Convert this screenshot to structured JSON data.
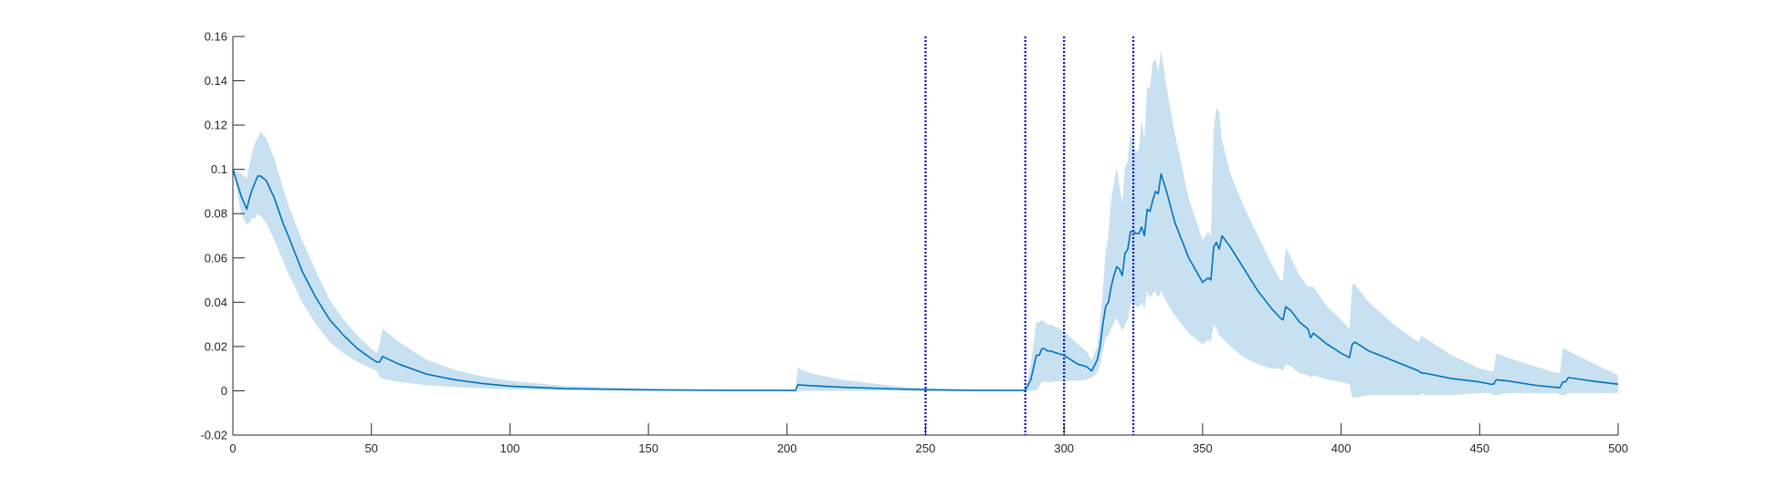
{
  "chart_data": {
    "type": "area",
    "title": "",
    "xlabel": "",
    "ylabel": "",
    "xlim": [
      0,
      500
    ],
    "ylim": [
      -0.02,
      0.16
    ],
    "x_ticks": [
      {
        "value": 0,
        "label": "0"
      },
      {
        "value": 50,
        "label": "50"
      },
      {
        "value": 100,
        "label": "100"
      },
      {
        "value": 150,
        "label": "150"
      },
      {
        "value": 200,
        "label": "200"
      },
      {
        "value": 250,
        "label": "250"
      },
      {
        "value": 300,
        "label": "300"
      },
      {
        "value": 350,
        "label": "350"
      },
      {
        "value": 400,
        "label": "400"
      },
      {
        "value": 450,
        "label": "450"
      },
      {
        "value": 500,
        "label": "500"
      }
    ],
    "y_ticks": [
      {
        "value": -0.02,
        "label": "-0.02"
      },
      {
        "value": 0,
        "label": "0"
      },
      {
        "value": 0.02,
        "label": "0.02"
      },
      {
        "value": 0.04,
        "label": "0.04"
      },
      {
        "value": 0.06,
        "label": "0.06"
      },
      {
        "value": 0.08,
        "label": "0.08"
      },
      {
        "value": 0.1,
        "label": "0.1"
      },
      {
        "value": 0.12,
        "label": "0.12"
      },
      {
        "value": 0.14,
        "label": "0.14"
      },
      {
        "value": 0.16,
        "label": "0.16"
      }
    ],
    "grid": false,
    "legend": "none",
    "colors": {
      "line": "#0072bd",
      "band": "#c8e1f1",
      "vlines": "#0000cc",
      "axis": "#262626"
    },
    "vertical_lines": [
      250,
      286,
      300,
      325
    ],
    "series": [
      {
        "x": [
          0,
          3,
          5,
          6,
          7,
          8,
          9,
          10,
          12,
          15,
          18,
          20,
          25,
          30,
          35,
          40,
          45,
          50,
          52,
          53,
          54,
          60,
          70,
          80,
          90,
          100,
          120,
          150,
          180,
          200,
          203,
          204,
          205,
          210,
          220,
          240,
          250,
          260,
          270,
          280,
          285,
          286,
          288,
          290,
          291,
          292,
          293,
          294,
          295,
          300,
          305,
          308,
          310,
          312,
          313,
          314,
          315,
          316,
          317,
          318,
          319,
          320,
          321,
          322,
          323,
          324,
          325,
          326,
          327,
          328,
          329,
          330,
          331,
          332,
          333,
          334,
          335,
          337,
          340,
          345,
          350,
          352,
          353,
          354,
          355,
          356,
          357,
          360,
          365,
          370,
          375,
          378,
          379,
          380,
          382,
          385,
          388,
          389,
          390,
          395,
          400,
          403,
          404,
          405,
          410,
          420,
          428,
          429,
          430,
          440,
          450,
          454,
          455,
          456,
          460,
          470,
          478,
          479,
          480,
          481,
          482,
          490,
          500
        ],
        "y": [
          0.1,
          0.088,
          0.082,
          0.087,
          0.091,
          0.094,
          0.097,
          0.097,
          0.095,
          0.087,
          0.076,
          0.07,
          0.054,
          0.042,
          0.032,
          0.025,
          0.019,
          0.0145,
          0.013,
          0.013,
          0.0155,
          0.012,
          0.0075,
          0.005,
          0.0033,
          0.0021,
          0.001,
          0.0004,
          0.0002,
          0.0002,
          0.0001,
          0.0028,
          0.0026,
          0.0022,
          0.0016,
          0.0008,
          0.0005,
          0.0003,
          0.0002,
          0.0002,
          0.0002,
          0.0002,
          0.005,
          0.016,
          0.016,
          0.019,
          0.019,
          0.018,
          0.018,
          0.016,
          0.012,
          0.011,
          0.009,
          0.014,
          0.02,
          0.03,
          0.038,
          0.04,
          0.047,
          0.052,
          0.056,
          0.055,
          0.052,
          0.062,
          0.064,
          0.072,
          0.072,
          0.071,
          0.071,
          0.074,
          0.07,
          0.082,
          0.081,
          0.086,
          0.09,
          0.089,
          0.098,
          0.09,
          0.076,
          0.06,
          0.049,
          0.051,
          0.05,
          0.065,
          0.067,
          0.064,
          0.07,
          0.065,
          0.055,
          0.045,
          0.037,
          0.033,
          0.032,
          0.038,
          0.036,
          0.031,
          0.028,
          0.024,
          0.026,
          0.021,
          0.017,
          0.015,
          0.021,
          0.022,
          0.018,
          0.013,
          0.009,
          0.008,
          0.008,
          0.0055,
          0.004,
          0.003,
          0.003,
          0.005,
          0.0045,
          0.0025,
          0.0015,
          0.0015,
          0.004,
          0.004,
          0.006,
          0.0045,
          0.003
        ],
        "lower": [
          0.1,
          0.08,
          0.075,
          0.076,
          0.078,
          0.078,
          0.08,
          0.079,
          0.076,
          0.068,
          0.059,
          0.053,
          0.04,
          0.03,
          0.022,
          0.017,
          0.013,
          0.01,
          0.009,
          0.006,
          0.0055,
          0.004,
          0.0025,
          0.0017,
          0.0011,
          0.0007,
          0.0003,
          0.0001,
          0.0001,
          0.0001,
          0,
          0,
          0,
          0,
          0,
          0,
          0,
          0,
          0,
          0,
          0,
          0,
          0,
          0.0002,
          0.002,
          0.004,
          0.004,
          0.004,
          0.004,
          0.0045,
          0.0045,
          0.005,
          0.006,
          0.008,
          0.012,
          0.018,
          0.024,
          0.025,
          0.028,
          0.031,
          0.033,
          0.03,
          0.027,
          0.03,
          0.032,
          0.039,
          0.04,
          0.038,
          0.038,
          0.04,
          0.037,
          0.045,
          0.042,
          0.044,
          0.045,
          0.042,
          0.045,
          0.04,
          0.034,
          0.026,
          0.021,
          0.023,
          0.022,
          0.03,
          0.028,
          0.025,
          0.024,
          0.02,
          0.015,
          0.012,
          0.01,
          0.01,
          0.009,
          0.012,
          0.011,
          0.008,
          0.007,
          0.006,
          0.007,
          0.005,
          0.004,
          0.003,
          -0.003,
          -0.003,
          -0.002,
          -0.002,
          -0.002,
          -0.001,
          -0.002,
          -0.002,
          -0.001,
          -0.001,
          -0.002,
          -0.002,
          -0.001,
          -0.001,
          -0.001,
          -0.002,
          -0.002,
          -0.002,
          -0.001,
          -0.001,
          -0.001
        ],
        "upper": [
          0.1,
          0.098,
          0.096,
          0.102,
          0.108,
          0.112,
          0.114,
          0.117,
          0.114,
          0.105,
          0.092,
          0.084,
          0.068,
          0.054,
          0.041,
          0.032,
          0.025,
          0.019,
          0.017,
          0.021,
          0.028,
          0.022,
          0.014,
          0.0095,
          0.0065,
          0.0045,
          0.0022,
          0.001,
          0.0006,
          0.0006,
          0.0004,
          0.011,
          0.0095,
          0.0075,
          0.005,
          0.002,
          0.0012,
          0.0008,
          0.0005,
          0.0004,
          0.0003,
          0.0003,
          0.012,
          0.031,
          0.031,
          0.032,
          0.031,
          0.03,
          0.03,
          0.027,
          0.021,
          0.018,
          0.014,
          0.02,
          0.031,
          0.045,
          0.063,
          0.07,
          0.086,
          0.094,
          0.101,
          0.092,
          0.085,
          0.101,
          0.104,
          0.117,
          0.111,
          0.108,
          0.109,
          0.122,
          0.114,
          0.137,
          0.137,
          0.148,
          0.15,
          0.144,
          0.154,
          0.137,
          0.116,
          0.087,
          0.068,
          0.072,
          0.07,
          0.118,
          0.128,
          0.126,
          0.113,
          0.098,
          0.083,
          0.07,
          0.057,
          0.05,
          0.05,
          0.065,
          0.06,
          0.052,
          0.047,
          0.047,
          0.047,
          0.038,
          0.032,
          0.028,
          0.048,
          0.048,
          0.04,
          0.029,
          0.022,
          0.025,
          0.024,
          0.016,
          0.01,
          0.009,
          0.009,
          0.017,
          0.015,
          0.011,
          0.008,
          0.008,
          0.019,
          0.019,
          0.018,
          0.013,
          0.007
        ]
      }
    ]
  }
}
